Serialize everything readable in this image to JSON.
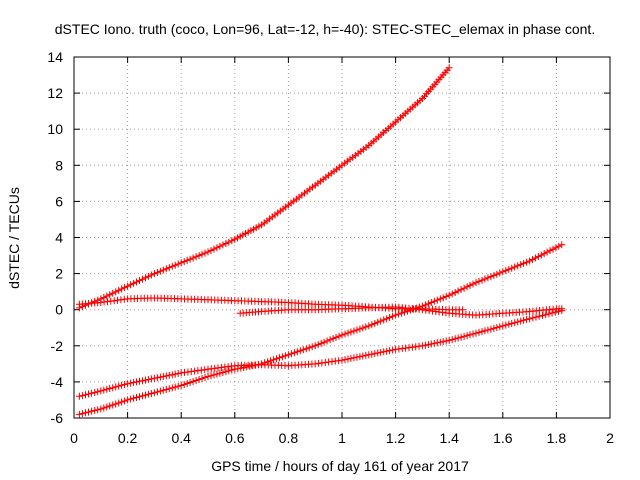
{
  "chart_data": {
    "type": "scatter",
    "title": "dSTEC Iono. truth (coco, Lon=96, Lat=-12, h=-40): STEC-STEC_elemax in phase cont.",
    "xlabel": "GPS time / hours of day 161 of year 2017",
    "ylabel": "dSTEC  / TECUs",
    "xlim": [
      0,
      2
    ],
    "ylim": [
      -6,
      14
    ],
    "x_ticks": [
      "0",
      "0.2",
      "0.4",
      "0.6",
      "0.8",
      "1",
      "1.2",
      "1.4",
      "1.6",
      "1.8",
      "2"
    ],
    "y_ticks": [
      "-6",
      "-4",
      "-2",
      "0",
      "2",
      "4",
      "6",
      "8",
      "10",
      "12",
      "14"
    ],
    "grid": true,
    "marker": "+",
    "marker_color": "#ff0000",
    "series": [
      {
        "points": [
          [
            0.02,
            0.1
          ],
          [
            0.1,
            0.6
          ],
          [
            0.2,
            1.3
          ],
          [
            0.3,
            2.0
          ],
          [
            0.4,
            2.6
          ],
          [
            0.5,
            3.2
          ],
          [
            0.6,
            3.9
          ],
          [
            0.7,
            4.7
          ],
          [
            0.8,
            5.8
          ],
          [
            0.9,
            6.9
          ],
          [
            1.0,
            8.0
          ],
          [
            1.1,
            9.1
          ],
          [
            1.2,
            10.4
          ],
          [
            1.3,
            11.7
          ],
          [
            1.4,
            13.4
          ]
        ]
      },
      {
        "points": [
          [
            0.02,
            0.3
          ],
          [
            0.1,
            0.4
          ],
          [
            0.2,
            0.6
          ],
          [
            0.3,
            0.65
          ],
          [
            0.4,
            0.6
          ],
          [
            0.5,
            0.55
          ],
          [
            0.6,
            0.5
          ],
          [
            0.7,
            0.45
          ],
          [
            0.8,
            0.4
          ],
          [
            0.9,
            0.3
          ],
          [
            1.0,
            0.25
          ],
          [
            1.1,
            0.15
          ],
          [
            1.2,
            0.05
          ],
          [
            1.3,
            0.05
          ],
          [
            1.4,
            0.0
          ],
          [
            1.45,
            0.0
          ]
        ]
      },
      {
        "points": [
          [
            0.62,
            -0.2
          ],
          [
            0.7,
            -0.1
          ],
          [
            0.8,
            0.0
          ],
          [
            0.9,
            0.0
          ],
          [
            1.0,
            0.05
          ],
          [
            1.1,
            0.1
          ],
          [
            1.2,
            0.15
          ],
          [
            1.3,
            0.0
          ],
          [
            1.4,
            -0.2
          ],
          [
            1.5,
            -0.3
          ],
          [
            1.6,
            -0.2
          ],
          [
            1.7,
            -0.1
          ],
          [
            1.8,
            0.05
          ],
          [
            1.82,
            0.05
          ]
        ]
      },
      {
        "points": [
          [
            0.02,
            -5.8
          ],
          [
            0.1,
            -5.5
          ],
          [
            0.2,
            -5.0
          ],
          [
            0.3,
            -4.6
          ],
          [
            0.4,
            -4.2
          ],
          [
            0.5,
            -3.7
          ],
          [
            0.6,
            -3.3
          ],
          [
            0.7,
            -3.0
          ],
          [
            0.8,
            -2.5
          ],
          [
            0.9,
            -2.0
          ],
          [
            1.0,
            -1.4
          ],
          [
            1.1,
            -0.9
          ],
          [
            1.2,
            -0.3
          ],
          [
            1.3,
            0.2
          ],
          [
            1.4,
            0.8
          ],
          [
            1.5,
            1.5
          ],
          [
            1.6,
            2.1
          ],
          [
            1.7,
            2.7
          ],
          [
            1.82,
            3.6
          ]
        ]
      },
      {
        "points": [
          [
            0.02,
            -4.8
          ],
          [
            0.1,
            -4.5
          ],
          [
            0.2,
            -4.1
          ],
          [
            0.3,
            -3.8
          ],
          [
            0.4,
            -3.5
          ],
          [
            0.5,
            -3.3
          ],
          [
            0.6,
            -3.1
          ],
          [
            0.7,
            -3.05
          ],
          [
            0.8,
            -3.1
          ],
          [
            0.9,
            -3.0
          ],
          [
            1.0,
            -2.8
          ],
          [
            1.1,
            -2.5
          ],
          [
            1.2,
            -2.2
          ],
          [
            1.3,
            -2.0
          ],
          [
            1.4,
            -1.7
          ],
          [
            1.5,
            -1.3
          ],
          [
            1.6,
            -0.9
          ],
          [
            1.7,
            -0.5
          ],
          [
            1.82,
            -0.05
          ]
        ]
      }
    ]
  }
}
